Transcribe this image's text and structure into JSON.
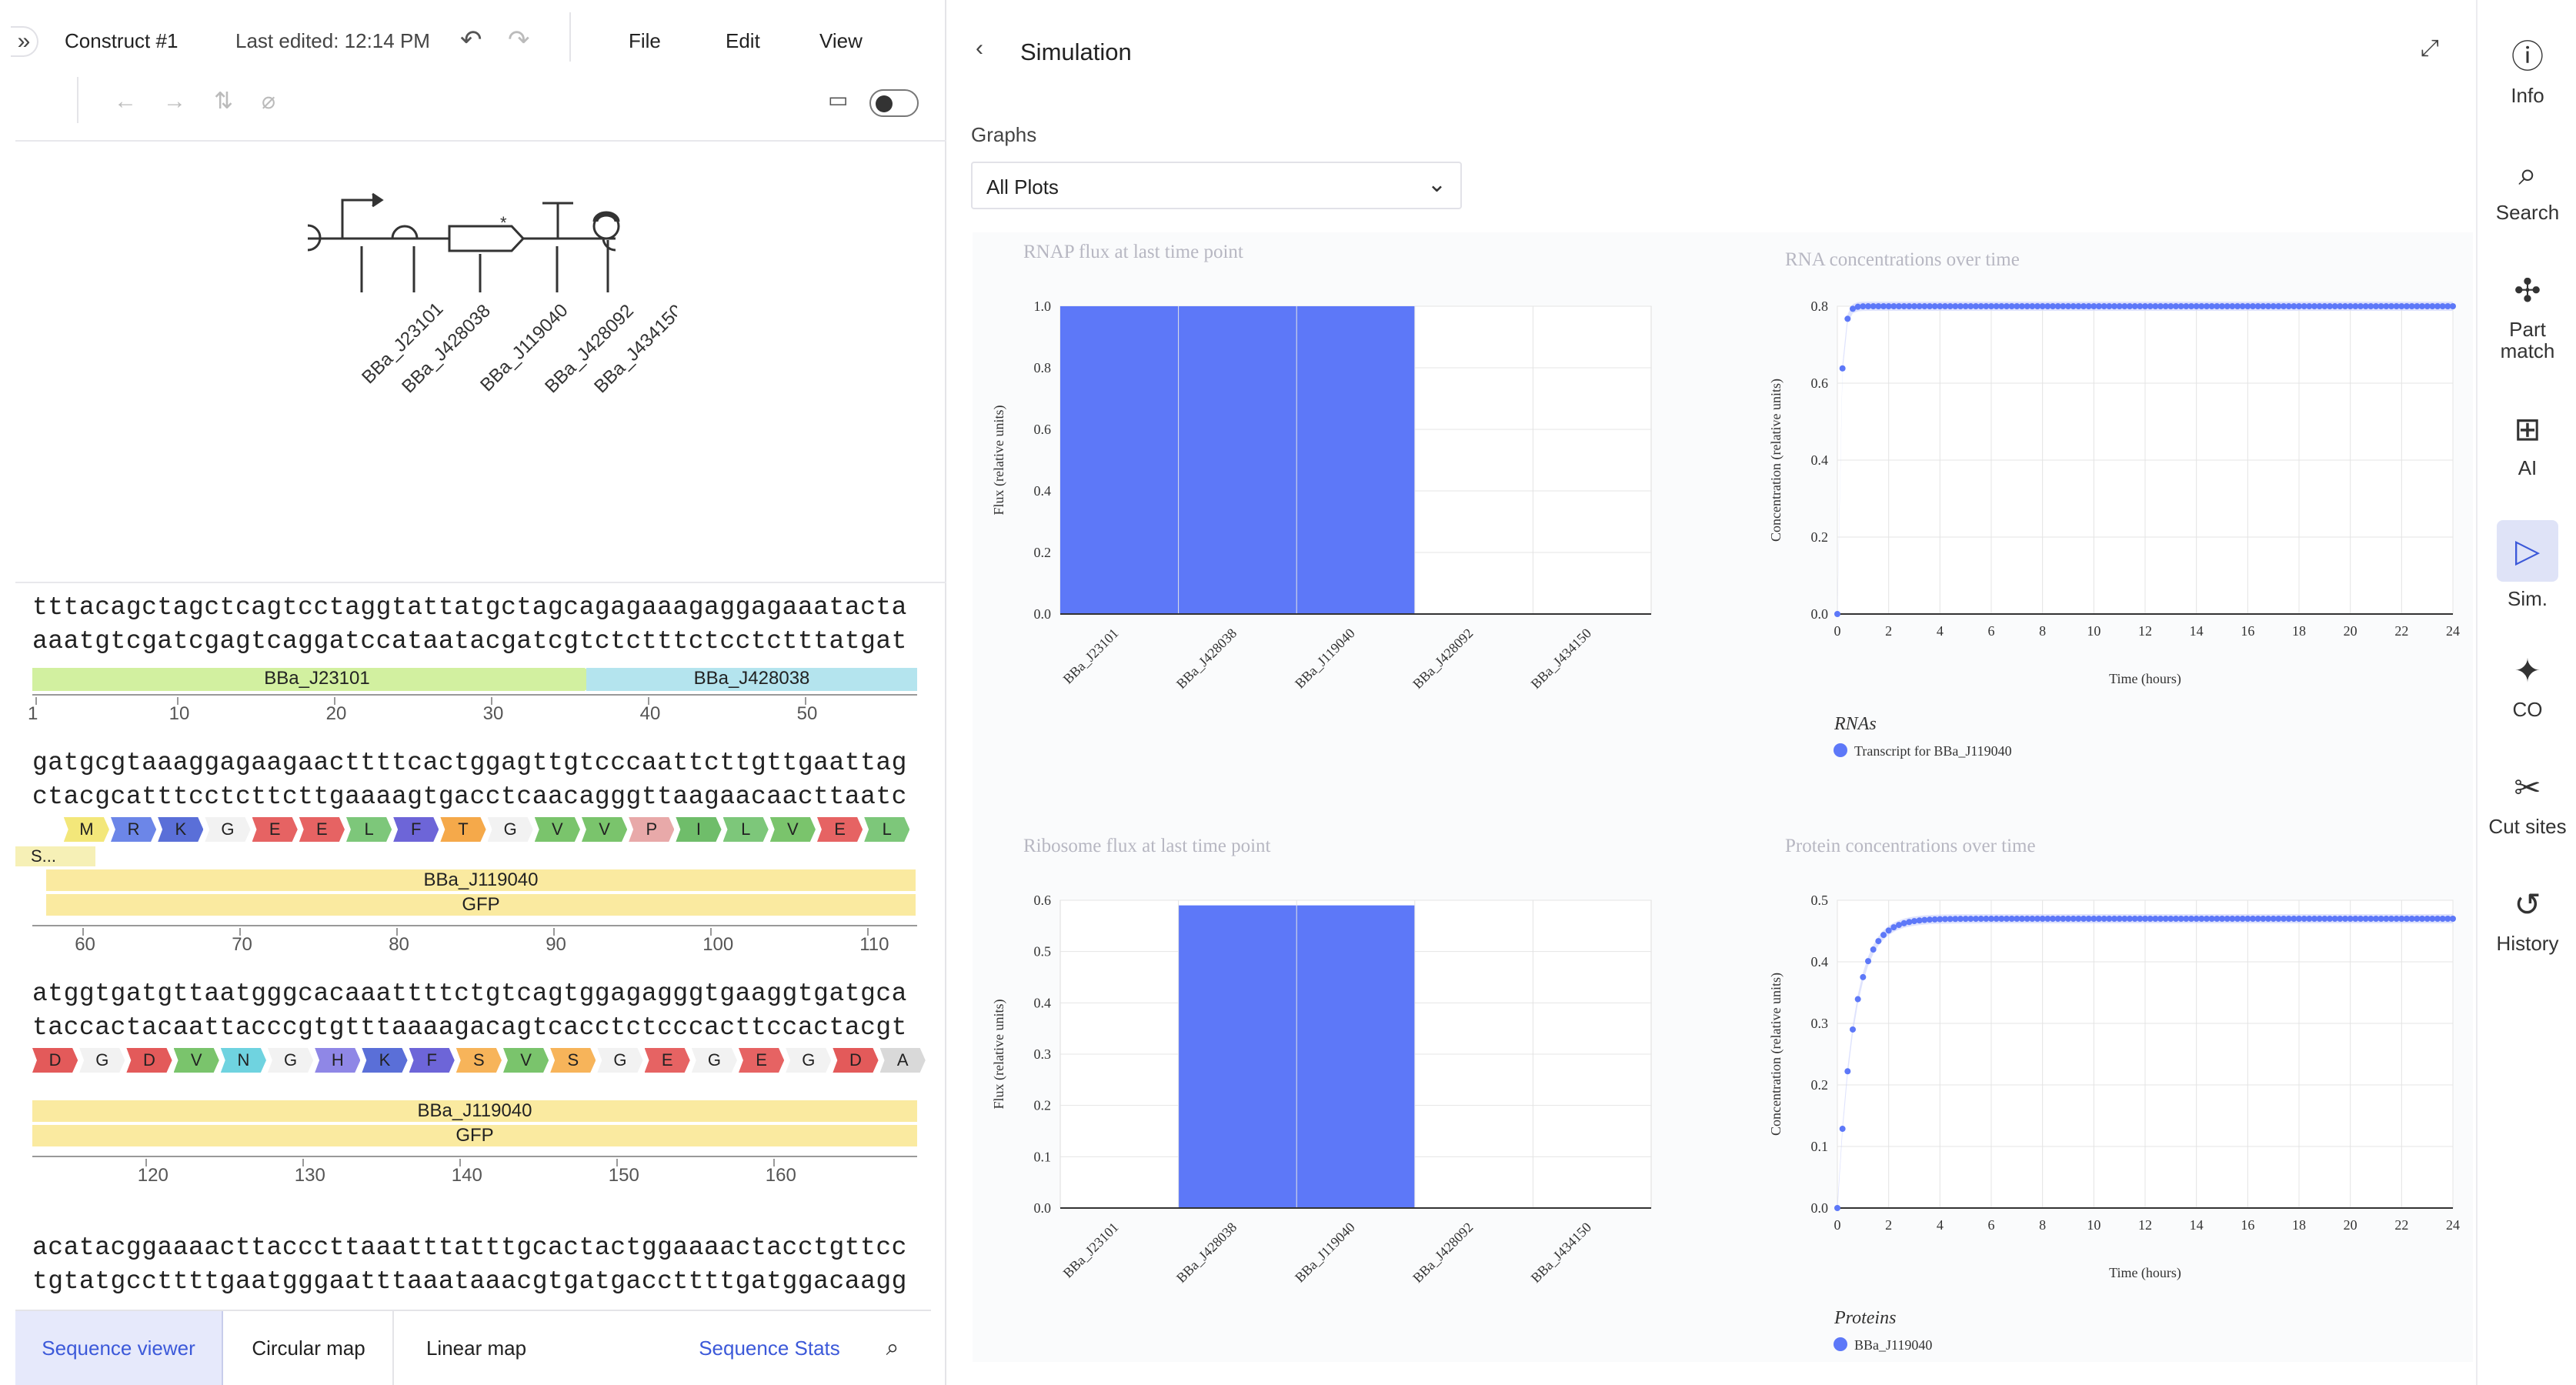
{
  "toolbar": {
    "title": "Construct #1",
    "last_edited": "Last edited: 12:14 PM",
    "menu": [
      "File",
      "Edit",
      "View"
    ]
  },
  "parts": [
    "BBa_J23101",
    "BBa_J428038",
    "BBa_J119040",
    "BBa_J428092",
    "BBa_J434150"
  ],
  "sequence": {
    "blocks": [
      {
        "top": "tttacagctagctcagtcctaggtattatgctagcagagaaagaggagaaatacta",
        "bottom": "aaatgtcgatcgagtcaggatccataatacgatcgtctctttctcctctttatgat",
        "features": [
          "BBa_J23101",
          "BBa_J428038"
        ],
        "ticks": [
          "1",
          "10",
          "20",
          "30",
          "40",
          "50"
        ]
      },
      {
        "top": "gatgcgtaaaggagaagaacttttcactggagttgtcccaattcttgttgaattag",
        "bottom": "ctacgcatttcctcttcttgaaaagtgacctcaacagggttaagaacaacttaatc",
        "aa": [
          "M",
          "R",
          "K",
          "G",
          "E",
          "E",
          "L",
          "F",
          "T",
          "G",
          "V",
          "V",
          "P",
          "I",
          "L",
          "V",
          "E",
          "L"
        ],
        "small": "S...",
        "features": [
          "BBa_J119040",
          "GFP"
        ],
        "ticks": [
          "60",
          "70",
          "80",
          "90",
          "100",
          "110"
        ]
      },
      {
        "top": "atggtgatgttaatgggcacaaattttctgtcagtggagagggtgaaggtgatgca",
        "bottom": "taccactacaattacccgtgtttaaaagacagtcacctctcccacttccactacgt",
        "aa": [
          "D",
          "G",
          "D",
          "V",
          "N",
          "G",
          "H",
          "K",
          "F",
          "S",
          "V",
          "S",
          "G",
          "E",
          "G",
          "E",
          "G",
          "D",
          "A"
        ],
        "features": [
          "BBa_J119040",
          "GFP"
        ],
        "ticks": [
          "120",
          "130",
          "140",
          "150",
          "160"
        ]
      },
      {
        "top": "acatacggaaaacttacccttaaatttatttgcactactggaaaactacctgttcc",
        "bottom": "tgtatgccttttgaatgggaatttaaataaacgtgatgaccttttgatggacaagg"
      }
    ]
  },
  "bottom_tabs": [
    "Sequence viewer",
    "Circular map",
    "Linear map"
  ],
  "sequence_stats": "Sequence Stats",
  "simulation": {
    "title": "Simulation",
    "graphs_label": "Graphs",
    "graphs_select": "All Plots"
  },
  "rail": [
    {
      "label": "Info",
      "icon": "info-icon"
    },
    {
      "label": "Search",
      "icon": "search-icon"
    },
    {
      "label": "Part match",
      "icon": "puzzle-icon"
    },
    {
      "label": "AI",
      "icon": "chip-icon"
    },
    {
      "label": "Sim.",
      "icon": "play-icon"
    },
    {
      "label": "CO",
      "icon": "sparkle-icon"
    },
    {
      "label": "Cut sites",
      "icon": "scissors-icon"
    },
    {
      "label": "History",
      "icon": "history-icon"
    }
  ],
  "colors": {
    "accent": "#3c59d9",
    "bar": "#5d78f8",
    "legend": "#5d78f8"
  },
  "chart_data": [
    {
      "type": "bar",
      "title": "RNAP flux at last time point",
      "ylabel": "Flux (relative units)",
      "categories": [
        "BBa_J23101",
        "BBa_J428038",
        "BBa_J119040",
        "BBa_J428092",
        "BBa_J434150"
      ],
      "values": [
        1.0,
        1.0,
        1.0,
        0,
        0
      ],
      "ylim": [
        0,
        1.0
      ],
      "yticks": [
        "0.0",
        "0.2",
        "0.4",
        "0.6",
        "0.8",
        "1.0"
      ]
    },
    {
      "type": "scatter",
      "title": "RNA concentrations over time",
      "xlabel": "Time (hours)",
      "ylabel": "Concentration (relative units)",
      "xlim": [
        0,
        24
      ],
      "ylim": [
        0,
        0.8
      ],
      "xticks": [
        "0",
        "2",
        "4",
        "6",
        "8",
        "10",
        "12",
        "14",
        "16",
        "18",
        "20",
        "22",
        "24"
      ],
      "yticks": [
        "0.0",
        "0.2",
        "0.4",
        "0.6",
        "0.8"
      ],
      "legend_title": "RNAs",
      "series": [
        {
          "name": "Transcript for BBa_J119040",
          "plateau": 0.8,
          "rate": 8.0
        }
      ]
    },
    {
      "type": "bar",
      "title": "Ribosome flux at last time point",
      "ylabel": "Flux (relative units)",
      "categories": [
        "BBa_J23101",
        "BBa_J428038",
        "BBa_J119040",
        "BBa_J428092",
        "BBa_J434150"
      ],
      "values": [
        0,
        0.59,
        0.59,
        0,
        0
      ],
      "ylim": [
        0,
        0.6
      ],
      "yticks": [
        "0.0",
        "0.1",
        "0.2",
        "0.3",
        "0.4",
        "0.5",
        "0.6"
      ]
    },
    {
      "type": "scatter",
      "title": "Protein concentrations over time",
      "xlabel": "Time (hours)",
      "ylabel": "Concentration (relative units)",
      "xlim": [
        0,
        24
      ],
      "ylim": [
        0,
        0.5
      ],
      "xticks": [
        "0",
        "2",
        "4",
        "6",
        "8",
        "10",
        "12",
        "14",
        "16",
        "18",
        "20",
        "22",
        "24"
      ],
      "yticks": [
        "0.0",
        "0.1",
        "0.2",
        "0.3",
        "0.4",
        "0.5"
      ],
      "legend_title": "Proteins",
      "series": [
        {
          "name": "BBa_J119040",
          "plateau": 0.47,
          "rate": 1.6
        }
      ]
    }
  ]
}
